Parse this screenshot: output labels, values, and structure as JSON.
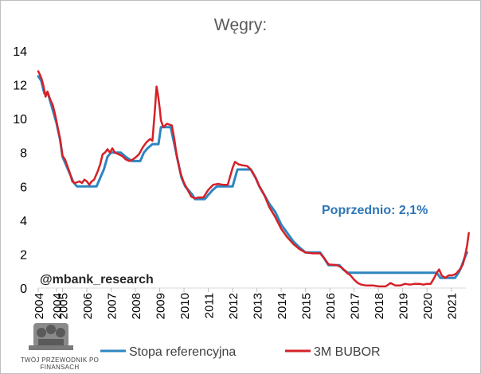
{
  "chart_data": {
    "type": "line",
    "title": "Węgry:",
    "ylim": [
      0,
      14
    ],
    "yticks": [
      "0",
      "2",
      "4",
      "6",
      "8",
      "10",
      "12",
      "14"
    ],
    "xlim": [
      2004.0,
      2021.6
    ],
    "xticks": [
      {
        "pos": 2004.0,
        "label": "2004"
      },
      {
        "pos": 2004.75,
        "label": "2004"
      },
      {
        "pos": 2005.0,
        "label": "2005"
      },
      {
        "pos": 2006.0,
        "label": "2006"
      },
      {
        "pos": 2007.0,
        "label": "2007"
      },
      {
        "pos": 2008.0,
        "label": "2008"
      },
      {
        "pos": 2009.0,
        "label": "2009"
      },
      {
        "pos": 2010.0,
        "label": "2010"
      },
      {
        "pos": 2011.0,
        "label": "2011"
      },
      {
        "pos": 2012.0,
        "label": "2012"
      },
      {
        "pos": 2013.0,
        "label": "2013"
      },
      {
        "pos": 2014.0,
        "label": "2014"
      },
      {
        "pos": 2015.0,
        "label": "2015"
      },
      {
        "pos": 2016.0,
        "label": "2016"
      },
      {
        "pos": 2017.0,
        "label": "2017"
      },
      {
        "pos": 2018.0,
        "label": "2018"
      },
      {
        "pos": 2019.0,
        "label": "2019"
      },
      {
        "pos": 2020.0,
        "label": "2020"
      },
      {
        "pos": 2021.0,
        "label": "2021"
      }
    ],
    "annotations": [
      "Poprzednio: 2,1%",
      "@mbank_research"
    ],
    "legend_position": "bottom",
    "series": [
      {
        "name": "Stopa referencyjna",
        "color": "#2e86c1",
        "points": [
          [
            2004.0,
            12.5
          ],
          [
            2004.12,
            12.25
          ],
          [
            2004.25,
            11.5
          ],
          [
            2004.4,
            11.5
          ],
          [
            2004.5,
            11.0
          ],
          [
            2004.6,
            10.5
          ],
          [
            2004.75,
            9.75
          ],
          [
            2004.9,
            8.75
          ],
          [
            2005.0,
            7.75
          ],
          [
            2005.15,
            7.25
          ],
          [
            2005.3,
            6.75
          ],
          [
            2005.45,
            6.25
          ],
          [
            2005.6,
            6.0
          ],
          [
            2005.8,
            6.0
          ],
          [
            2006.0,
            6.0
          ],
          [
            2006.2,
            6.0
          ],
          [
            2006.4,
            6.0
          ],
          [
            2006.55,
            6.5
          ],
          [
            2006.7,
            7.0
          ],
          [
            2006.85,
            7.75
          ],
          [
            2007.0,
            8.0
          ],
          [
            2007.2,
            8.0
          ],
          [
            2007.4,
            8.0
          ],
          [
            2007.6,
            7.75
          ],
          [
            2007.85,
            7.5
          ],
          [
            2008.0,
            7.5
          ],
          [
            2008.2,
            7.5
          ],
          [
            2008.35,
            8.0
          ],
          [
            2008.5,
            8.25
          ],
          [
            2008.7,
            8.5
          ],
          [
            2008.95,
            8.5
          ],
          [
            2009.05,
            9.5
          ],
          [
            2009.25,
            9.5
          ],
          [
            2009.45,
            9.5
          ],
          [
            2009.6,
            8.5
          ],
          [
            2009.75,
            7.5
          ],
          [
            2009.9,
            6.5
          ],
          [
            2010.05,
            6.0
          ],
          [
            2010.2,
            5.75
          ],
          [
            2010.35,
            5.5
          ],
          [
            2010.45,
            5.25
          ],
          [
            2010.85,
            5.25
          ],
          [
            2011.0,
            5.5
          ],
          [
            2011.15,
            5.75
          ],
          [
            2011.35,
            6.0
          ],
          [
            2011.55,
            6.0
          ],
          [
            2012.0,
            6.0
          ],
          [
            2012.1,
            6.5
          ],
          [
            2012.2,
            7.0
          ],
          [
            2012.5,
            7.0
          ],
          [
            2012.75,
            7.0
          ],
          [
            2012.95,
            6.5
          ],
          [
            2013.1,
            6.0
          ],
          [
            2013.3,
            5.5
          ],
          [
            2013.5,
            5.0
          ],
          [
            2013.75,
            4.5
          ],
          [
            2014.0,
            3.75
          ],
          [
            2014.25,
            3.25
          ],
          [
            2014.5,
            2.75
          ],
          [
            2014.75,
            2.4
          ],
          [
            2015.0,
            2.1
          ],
          [
            2015.3,
            2.1
          ],
          [
            2015.6,
            2.1
          ],
          [
            2015.75,
            1.8
          ],
          [
            2015.95,
            1.35
          ],
          [
            2016.4,
            1.35
          ],
          [
            2016.55,
            1.1
          ],
          [
            2016.75,
            0.9
          ],
          [
            2017.0,
            0.9
          ],
          [
            2020.4,
            0.9
          ],
          [
            2020.55,
            0.6
          ],
          [
            2021.0,
            0.6
          ],
          [
            2021.15,
            0.6
          ],
          [
            2021.3,
            0.9
          ],
          [
            2021.4,
            1.2
          ],
          [
            2021.55,
            1.8
          ],
          [
            2021.65,
            2.1
          ]
        ]
      },
      {
        "name": "3M BUBOR",
        "color": "#d62027",
        "points": [
          [
            2004.0,
            12.8
          ],
          [
            2004.07,
            12.6
          ],
          [
            2004.15,
            12.3
          ],
          [
            2004.22,
            11.9
          ],
          [
            2004.3,
            11.3
          ],
          [
            2004.38,
            11.6
          ],
          [
            2004.5,
            11.1
          ],
          [
            2004.6,
            10.8
          ],
          [
            2004.7,
            10.2
          ],
          [
            2004.8,
            9.5
          ],
          [
            2004.9,
            8.8
          ],
          [
            2005.0,
            7.8
          ],
          [
            2005.1,
            7.6
          ],
          [
            2005.2,
            7.2
          ],
          [
            2005.3,
            6.8
          ],
          [
            2005.4,
            6.3
          ],
          [
            2005.5,
            6.2
          ],
          [
            2005.6,
            6.25
          ],
          [
            2005.7,
            6.3
          ],
          [
            2005.8,
            6.2
          ],
          [
            2005.9,
            6.4
          ],
          [
            2006.0,
            6.3
          ],
          [
            2006.1,
            6.1
          ],
          [
            2006.2,
            6.3
          ],
          [
            2006.3,
            6.4
          ],
          [
            2006.45,
            6.9
          ],
          [
            2006.55,
            7.3
          ],
          [
            2006.65,
            7.9
          ],
          [
            2006.75,
            8.0
          ],
          [
            2006.85,
            8.2
          ],
          [
            2006.95,
            8.0
          ],
          [
            2007.05,
            8.25
          ],
          [
            2007.15,
            8.0
          ],
          [
            2007.3,
            7.9
          ],
          [
            2007.45,
            7.8
          ],
          [
            2007.6,
            7.6
          ],
          [
            2007.75,
            7.5
          ],
          [
            2007.9,
            7.6
          ],
          [
            2008.0,
            7.7
          ],
          [
            2008.15,
            7.9
          ],
          [
            2008.3,
            8.3
          ],
          [
            2008.45,
            8.6
          ],
          [
            2008.6,
            8.8
          ],
          [
            2008.7,
            8.7
          ],
          [
            2008.8,
            10.5
          ],
          [
            2008.87,
            11.9
          ],
          [
            2008.93,
            11.4
          ],
          [
            2009.0,
            10.6
          ],
          [
            2009.05,
            9.9
          ],
          [
            2009.15,
            9.5
          ],
          [
            2009.3,
            9.7
          ],
          [
            2009.5,
            9.6
          ],
          [
            2009.6,
            8.8
          ],
          [
            2009.7,
            7.8
          ],
          [
            2009.85,
            6.8
          ],
          [
            2010.0,
            6.2
          ],
          [
            2010.15,
            5.8
          ],
          [
            2010.3,
            5.4
          ],
          [
            2010.45,
            5.3
          ],
          [
            2010.6,
            5.35
          ],
          [
            2010.8,
            5.35
          ],
          [
            2011.0,
            5.8
          ],
          [
            2011.2,
            6.1
          ],
          [
            2011.4,
            6.15
          ],
          [
            2011.6,
            6.1
          ],
          [
            2011.8,
            6.1
          ],
          [
            2012.0,
            7.1
          ],
          [
            2012.1,
            7.45
          ],
          [
            2012.25,
            7.3
          ],
          [
            2012.4,
            7.25
          ],
          [
            2012.6,
            7.2
          ],
          [
            2012.75,
            7.0
          ],
          [
            2012.95,
            6.5
          ],
          [
            2013.1,
            6.0
          ],
          [
            2013.3,
            5.5
          ],
          [
            2013.5,
            4.8
          ],
          [
            2013.75,
            4.2
          ],
          [
            2014.0,
            3.5
          ],
          [
            2014.25,
            3.0
          ],
          [
            2014.5,
            2.6
          ],
          [
            2014.75,
            2.3
          ],
          [
            2015.0,
            2.1
          ],
          [
            2015.3,
            2.05
          ],
          [
            2015.6,
            2.05
          ],
          [
            2015.75,
            1.8
          ],
          [
            2015.95,
            1.4
          ],
          [
            2016.3,
            1.35
          ],
          [
            2016.5,
            1.2
          ],
          [
            2016.7,
            0.9
          ],
          [
            2016.85,
            0.75
          ],
          [
            2017.0,
            0.5
          ],
          [
            2017.15,
            0.3
          ],
          [
            2017.3,
            0.2
          ],
          [
            2017.5,
            0.15
          ],
          [
            2017.8,
            0.15
          ],
          [
            2018.0,
            0.1
          ],
          [
            2018.3,
            0.1
          ],
          [
            2018.5,
            0.3
          ],
          [
            2018.7,
            0.15
          ],
          [
            2018.9,
            0.15
          ],
          [
            2019.1,
            0.25
          ],
          [
            2019.3,
            0.2
          ],
          [
            2019.5,
            0.25
          ],
          [
            2019.7,
            0.25
          ],
          [
            2019.85,
            0.2
          ],
          [
            2020.0,
            0.25
          ],
          [
            2020.15,
            0.25
          ],
          [
            2020.3,
            0.6
          ],
          [
            2020.4,
            0.9
          ],
          [
            2020.5,
            1.1
          ],
          [
            2020.6,
            0.75
          ],
          [
            2020.75,
            0.6
          ],
          [
            2020.9,
            0.75
          ],
          [
            2021.05,
            0.75
          ],
          [
            2021.2,
            0.85
          ],
          [
            2021.35,
            1.1
          ],
          [
            2021.48,
            1.4
          ],
          [
            2021.58,
            2.0
          ],
          [
            2021.65,
            2.5
          ],
          [
            2021.72,
            3.25
          ]
        ]
      }
    ]
  },
  "logo": {
    "text_line1": "TWÓJ PRZEWODNIK PO",
    "text_line2": "FINANSACH"
  }
}
